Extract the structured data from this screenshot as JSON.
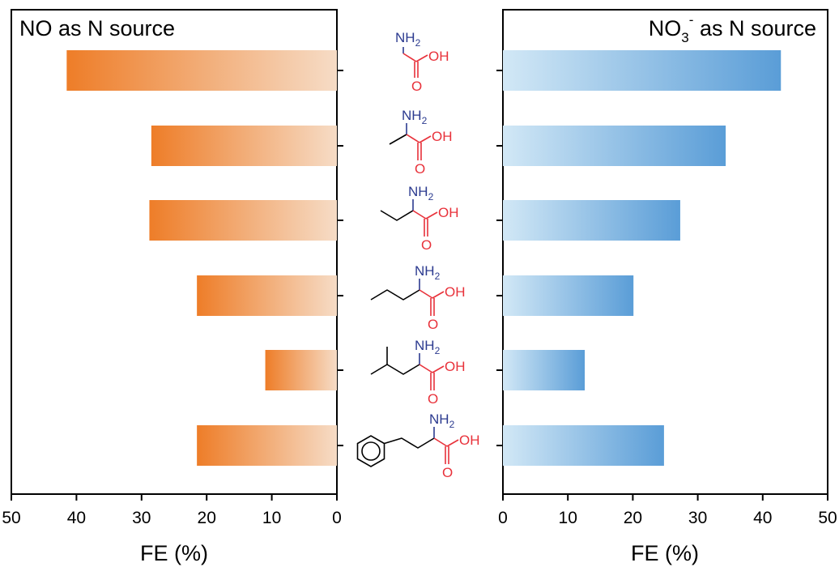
{
  "chart_data": [
    {
      "type": "bar",
      "orientation": "horizontal",
      "title": "NO as N source",
      "xlabel": "FE (%)",
      "xlim": [
        50,
        0
      ],
      "xticks": [
        "50",
        "40",
        "30",
        "20",
        "10",
        "0"
      ],
      "values": [
        41.5,
        28.5,
        28.8,
        21.5,
        11,
        21.5
      ],
      "color": "#ed7d2b"
    },
    {
      "type": "bar",
      "orientation": "horizontal",
      "title_main": "NO",
      "title_sub": "3",
      "title_sup": "-",
      "title_rest": " as N source",
      "xlabel": "FE (%)",
      "xlim": [
        0,
        50
      ],
      "xticks": [
        "0",
        "10",
        "20",
        "30",
        "40",
        "50"
      ],
      "values": [
        42.8,
        34.3,
        27.3,
        20.1,
        12.6,
        24.8
      ],
      "color": "#5b9fd8"
    }
  ],
  "structures": {
    "nh2": "NH",
    "nh2_sub": "2",
    "oh": "OH",
    "o": "O"
  },
  "colors": {
    "title": "#6a3d9a",
    "amine": "#2b3a8f",
    "acid": "#e8313a"
  }
}
